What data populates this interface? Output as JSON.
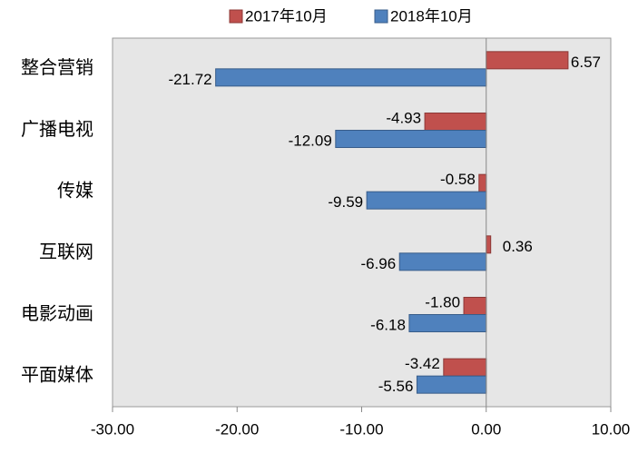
{
  "chart_data": {
    "type": "bar",
    "orientation": "horizontal",
    "categories": [
      "整合营销",
      "广播电视",
      "传媒",
      "互联网",
      "电影动画",
      "平面媒体"
    ],
    "series": [
      {
        "name": "2017年10月",
        "color": "#c0504d",
        "values": [
          6.57,
          -4.93,
          -0.58,
          0.36,
          -1.8,
          -3.42
        ],
        "value_labels": [
          "6.57",
          "-4.93",
          "-0.58",
          "0.36",
          "-1.80",
          "-3.42"
        ]
      },
      {
        "name": "2018年10月",
        "color": "#4f81bd",
        "values": [
          -21.72,
          -12.09,
          -9.59,
          -6.96,
          -6.18,
          -5.56
        ],
        "value_labels": [
          "-21.72",
          "-12.09",
          "-9.59",
          "-6.96",
          "-6.18",
          "-5.56"
        ]
      }
    ],
    "xlim": [
      -30,
      10
    ],
    "xticks": [
      {
        "value": -30,
        "label": "-30.00"
      },
      {
        "value": -20,
        "label": "-20.00"
      },
      {
        "value": -10,
        "label": "-10.00"
      },
      {
        "value": 0,
        "label": "0.00"
      },
      {
        "value": 10,
        "label": "10.00"
      }
    ],
    "legend": "top"
  }
}
